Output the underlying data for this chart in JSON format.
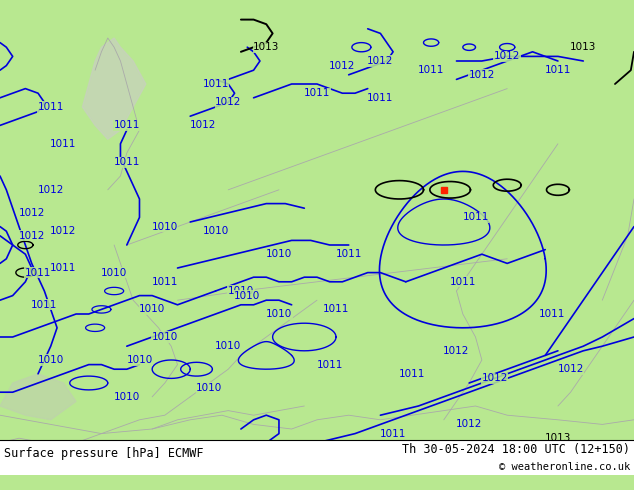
{
  "title_left": "Surface pressure [hPa] ECMWF",
  "title_right": "Th 30-05-2024 18:00 UTC (12+150)",
  "copyright": "© weatheronline.co.uk",
  "bg_color": "#b8e890",
  "footer_bg": "#ffffff",
  "contour_color_blue": "#0000dd",
  "contour_color_black": "#000000",
  "contour_color_red": "#ff2200",
  "border_color": "#aaaaaa",
  "figwidth": 6.34,
  "figheight": 4.9,
  "dpi": 100,
  "footer_fontsize": 8.5,
  "label_fontsize": 7.5,
  "sea_color": "#d0d8c8",
  "gray_region_color": "#c0c8b8"
}
